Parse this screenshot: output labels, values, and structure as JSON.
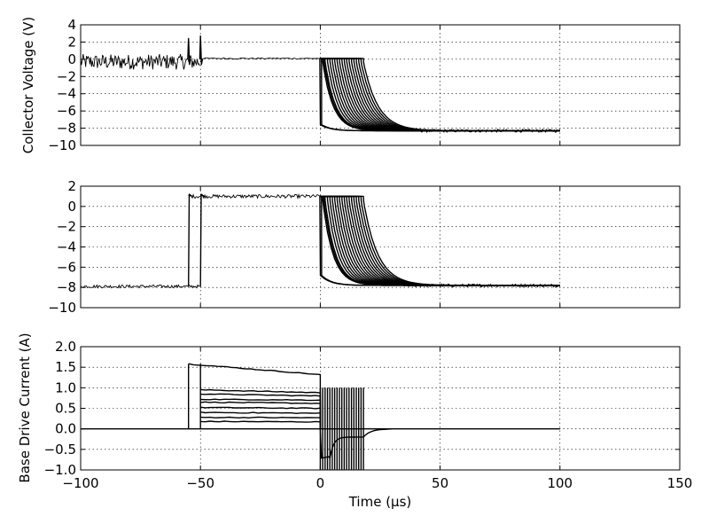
{
  "chart_data": [
    {
      "type": "line",
      "id": "collector",
      "ylabel": "Collector Voltage (V)",
      "xlim": [
        -100,
        150
      ],
      "ylim": [
        -10,
        4
      ],
      "yticks": [
        4,
        2,
        0,
        -2,
        -4,
        -6,
        -8,
        -10
      ],
      "ytick_labels": [
        "4",
        "2",
        "0",
        "−2",
        "−4",
        "−6",
        "−8",
        "−10"
      ],
      "xticks": [
        -100,
        -50,
        0,
        50,
        100,
        150
      ],
      "show_xtick_labels": false,
      "grid": true,
      "color": "#000000",
      "traces": {
        "pre_level": [
          -1.2,
          0.6
        ],
        "spikes": [
          {
            "x": -55,
            "y": 2.4
          },
          {
            "x": -50,
            "y": 2.7
          }
        ],
        "mid_level": 0.1,
        "fall_start": 0,
        "fall_drop_to": -7.6,
        "final_level": -8.3,
        "fall_offsets_us": [
          0,
          0.5,
          1,
          1.5,
          2,
          3,
          4,
          5,
          6,
          7,
          8,
          9,
          10,
          11,
          12,
          13,
          14,
          15,
          16,
          17,
          18
        ],
        "tau_us": 12,
        "end_x": 100
      }
    },
    {
      "type": "line",
      "id": "middle",
      "ylabel": "",
      "xlim": [
        -100,
        150
      ],
      "ylim": [
        -10,
        2
      ],
      "yticks": [
        2,
        0,
        -2,
        -4,
        -6,
        -8,
        -10
      ],
      "ytick_labels": [
        "2",
        "0",
        "−2",
        "−4",
        "−6",
        "−8",
        "−10"
      ],
      "xticks": [
        -100,
        -50,
        0,
        50,
        100,
        150
      ],
      "show_xtick_labels": false,
      "grid": true,
      "color": "#000000",
      "traces": {
        "pre_level": -7.9,
        "rise_x": [
          -55,
          -50
        ],
        "high_level": 1.0,
        "fall_start": 0,
        "fall_drop_to": -6.8,
        "final_level": -7.8,
        "fall_offsets_us": [
          0,
          0.5,
          1,
          1.5,
          2,
          3,
          4,
          5,
          6,
          7,
          8,
          9,
          10,
          11,
          12,
          13,
          14,
          15,
          16,
          17,
          18
        ],
        "tau_us": 12,
        "end_x": 100
      }
    },
    {
      "type": "line",
      "id": "base",
      "ylabel": "Base Drive Current (A)",
      "xlabel": "Time (μs)",
      "xlim": [
        -100,
        150
      ],
      "ylim": [
        -1.0,
        2.0
      ],
      "yticks": [
        2.0,
        1.5,
        1.0,
        0.5,
        0.0,
        -0.5,
        -1.0
      ],
      "ytick_labels": [
        "2.0",
        "1.5",
        "1.0",
        "0.5",
        "0.0",
        "−0.5",
        "−1.0"
      ],
      "xticks": [
        -100,
        -50,
        0,
        50,
        100,
        150
      ],
      "xtick_labels": [
        "−100",
        "−50",
        "0",
        "50",
        "100",
        "150"
      ],
      "show_xtick_labels": true,
      "grid": true,
      "color": "#000000",
      "traces": {
        "baseline": 0.0,
        "pulse_start_x": [
          -55,
          -50
        ],
        "pulse_end_x": 0,
        "pulse_levels": [
          {
            "start": 1.58,
            "end": 1.32
          },
          {
            "start": 0.95,
            "end": 0.88
          },
          {
            "start": 0.85,
            "end": 0.8
          },
          {
            "start": 0.72,
            "end": 0.7
          },
          {
            "start": 0.65,
            "end": 0.62
          },
          {
            "start": 0.52,
            "end": 0.5
          },
          {
            "start": 0.4,
            "end": 0.38
          },
          {
            "start": 0.28,
            "end": 0.27
          },
          {
            "start": 0.18,
            "end": 0.17
          }
        ],
        "spikes_x": [
          0,
          1,
          2,
          3,
          4,
          5,
          6,
          7,
          8,
          9,
          10,
          11,
          12,
          13,
          14,
          15,
          16,
          17,
          18
        ],
        "spike_top": 1.0,
        "spike_bottom": -1.0,
        "tail_min": -0.72,
        "tail_plateau": -0.2,
        "tail_end_x": 25,
        "end_x": 100
      }
    }
  ]
}
